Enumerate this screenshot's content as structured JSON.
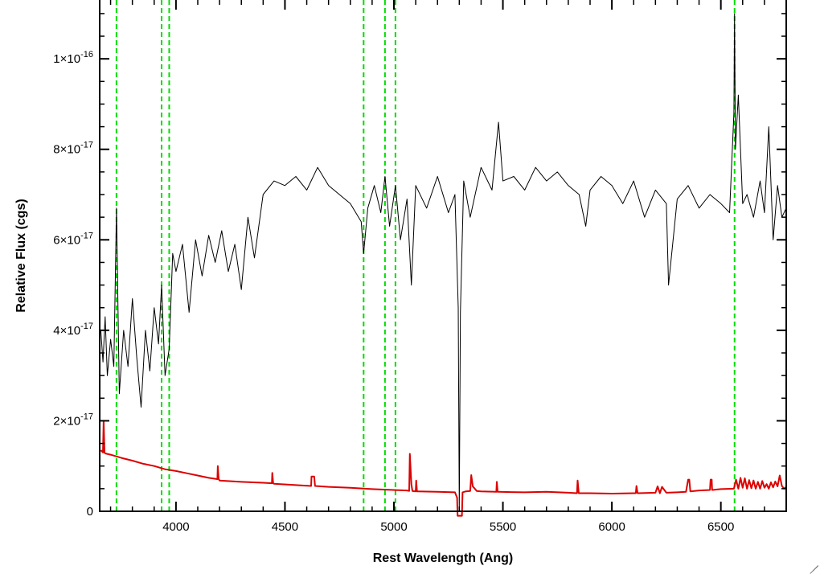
{
  "chart_data": {
    "type": "line",
    "title": "",
    "xlabel": "Rest Wavelength (Ang)",
    "ylabel": "Relative Flux (cgs)",
    "xlim": [
      3650,
      6800
    ],
    "ylim": [
      0,
      1.13e-16
    ],
    "x_ticks": [
      {
        "value": 4000,
        "label": "4000"
      },
      {
        "value": 4500,
        "label": "4500"
      },
      {
        "value": 5000,
        "label": "5000"
      },
      {
        "value": 5500,
        "label": "5500"
      },
      {
        "value": 6000,
        "label": "6000"
      },
      {
        "value": 6500,
        "label": "6500"
      }
    ],
    "y_ticks": [
      {
        "value": 0,
        "mant": "0",
        "exp": ""
      },
      {
        "value": 2e-17,
        "mant": "2×10",
        "exp": "-17"
      },
      {
        "value": 4e-17,
        "mant": "4×10",
        "exp": "-17"
      },
      {
        "value": 6e-17,
        "mant": "6×10",
        "exp": "-17"
      },
      {
        "value": 8e-17,
        "mant": "8×10",
        "exp": "-17"
      },
      {
        "value": 1e-16,
        "mant": "1×10",
        "exp": "-16"
      }
    ],
    "grid": false,
    "reference_lines": {
      "color": "#00dd00",
      "style": "dashed",
      "x": [
        3727,
        3934,
        3969,
        4861,
        4959,
        5007,
        6563
      ]
    },
    "series": [
      {
        "color": "#000000",
        "x": [
          3655,
          3665,
          3675,
          3685,
          3700,
          3715,
          3727,
          3740,
          3760,
          3780,
          3800,
          3820,
          3840,
          3860,
          3880,
          3900,
          3920,
          3934,
          3950,
          3969,
          3985,
          4000,
          4030,
          4060,
          4090,
          4120,
          4150,
          4180,
          4210,
          4240,
          4270,
          4300,
          4330,
          4360,
          4400,
          4450,
          4500,
          4550,
          4600,
          4650,
          4700,
          4750,
          4800,
          4850,
          4861,
          4880,
          4910,
          4940,
          4959,
          4980,
          5007,
          5030,
          5060,
          5080,
          5100,
          5150,
          5200,
          5250,
          5280,
          5295,
          5300,
          5305,
          5320,
          5350,
          5400,
          5450,
          5480,
          5500,
          5550,
          5600,
          5650,
          5700,
          5750,
          5800,
          5850,
          5880,
          5900,
          5950,
          6000,
          6050,
          6100,
          6150,
          6200,
          6250,
          6260,
          6300,
          6350,
          6400,
          6450,
          6500,
          6540,
          6560,
          6563,
          6567,
          6580,
          6600,
          6620,
          6650,
          6680,
          6700,
          6720,
          6740,
          6760,
          6780,
          6800
        ],
        "y": [
          4e-17,
          3.3e-17,
          4.3e-17,
          3e-17,
          3.8e-17,
          3.2e-17,
          6.7e-17,
          2.6e-17,
          4e-17,
          3.2e-17,
          4.7e-17,
          3.4e-17,
          2.3e-17,
          4e-17,
          3.1e-17,
          4.5e-17,
          3.7e-17,
          5e-17,
          3e-17,
          3.6e-17,
          5.7e-17,
          5.3e-17,
          5.9e-17,
          4.4e-17,
          6e-17,
          5.2e-17,
          6.1e-17,
          5.5e-17,
          6.2e-17,
          5.3e-17,
          5.9e-17,
          4.9e-17,
          6.5e-17,
          5.6e-17,
          7e-17,
          7.3e-17,
          7.2e-17,
          7.4e-17,
          7.1e-17,
          7.6e-17,
          7.2e-17,
          7e-17,
          6.8e-17,
          6.4e-17,
          5.7e-17,
          6.7e-17,
          7.2e-17,
          6.6e-17,
          7.4e-17,
          6.3e-17,
          7.2e-17,
          6e-17,
          6.9e-17,
          5e-17,
          7.2e-17,
          6.7e-17,
          7.4e-17,
          6.6e-17,
          7e-17,
          4.5e-17,
          0,
          4.4e-17,
          7.3e-17,
          6.5e-17,
          7.6e-17,
          7.1e-17,
          8.6e-17,
          7.3e-17,
          7.4e-17,
          7.1e-17,
          7.6e-17,
          7.3e-17,
          7.5e-17,
          7.2e-17,
          7e-17,
          6.3e-17,
          7.1e-17,
          7.4e-17,
          7.2e-17,
          6.8e-17,
          7.3e-17,
          6.5e-17,
          7.1e-17,
          6.8e-17,
          5e-17,
          6.9e-17,
          7.2e-17,
          6.7e-17,
          7e-17,
          6.8e-17,
          6.6e-17,
          8.8e-17,
          1.1e-16,
          8e-17,
          9.2e-17,
          6.8e-17,
          7e-17,
          6.5e-17,
          7.3e-17,
          6.6e-17,
          8.5e-17,
          6e-17,
          7.2e-17,
          6.5e-17,
          6.7e-17
        ]
      },
      {
        "color": "#dd0000",
        "x": [
          3655,
          3665,
          3668,
          3672,
          3675,
          3700,
          3750,
          3800,
          3850,
          3900,
          3950,
          4000,
          4050,
          4100,
          4150,
          4190,
          4192,
          4196,
          4200,
          4300,
          4400,
          4440,
          4442,
          4446,
          4450,
          4550,
          4620,
          4622,
          4634,
          4638,
          4700,
          4800,
          4900,
          5000,
          5060,
          5070,
          5073,
          5080,
          5085,
          5100,
          5102,
          5106,
          5110,
          5200,
          5280,
          5290,
          5292,
          5312,
          5315,
          5330,
          5350,
          5355,
          5362,
          5380,
          5400,
          5470,
          5472,
          5476,
          5480,
          5600,
          5700,
          5800,
          5840,
          5843,
          5848,
          5850,
          5900,
          6000,
          6100,
          6110,
          6113,
          6118,
          6120,
          6200,
          6210,
          6220,
          6230,
          6250,
          6300,
          6340,
          6350,
          6355,
          6360,
          6400,
          6450,
          6453,
          6458,
          6460,
          6500,
          6560,
          6563,
          6570,
          6580,
          6590,
          6600,
          6610,
          6620,
          6630,
          6640,
          6650,
          6660,
          6670,
          6680,
          6690,
          6700,
          6710,
          6720,
          6730,
          6740,
          6750,
          6760,
          6770,
          6780,
          6790,
          6800
        ],
        "y": [
          1.35e-17,
          1.3e-17,
          2e-17,
          1.3e-17,
          1.28e-17,
          1.25e-17,
          1.18e-17,
          1.12e-17,
          1.05e-17,
          1e-17,
          9.3e-18,
          8.9e-18,
          8.4e-18,
          7.9e-18,
          7.4e-18,
          7.1e-18,
          1e-17,
          7.1e-18,
          6.8e-18,
          6.5e-18,
          6.3e-18,
          6.2e-18,
          8.5e-18,
          6.2e-18,
          6.1e-18,
          5.8e-18,
          5.6e-18,
          7.7e-18,
          7.7e-18,
          5.6e-18,
          5.4e-18,
          5.2e-18,
          4.9e-18,
          4.7e-18,
          4.6e-18,
          4.5e-18,
          1.27e-17,
          6e-18,
          4.5e-18,
          4.4e-18,
          6.8e-18,
          4.4e-18,
          4.4e-18,
          4.3e-18,
          4.2e-18,
          3e-18,
          -1e-18,
          -1e-18,
          4.2e-18,
          4.4e-18,
          4.5e-18,
          8e-18,
          5.5e-18,
          4.5e-18,
          4.4e-18,
          4.3e-18,
          6.5e-18,
          4.3e-18,
          4.3e-18,
          4.2e-18,
          4.3e-18,
          4.1e-18,
          4e-18,
          6.8e-18,
          4e-18,
          4e-18,
          4e-18,
          3.9e-18,
          4e-18,
          4e-18,
          5.6e-18,
          4e-18,
          4e-18,
          4.1e-18,
          5.5e-18,
          4e-18,
          5.4e-18,
          4.1e-18,
          4.2e-18,
          4.3e-18,
          7e-18,
          7e-18,
          4.4e-18,
          4.6e-18,
          4.7e-18,
          7e-18,
          7e-18,
          4.7e-18,
          4.9e-18,
          5e-18,
          5.6e-18,
          7e-18,
          5e-18,
          7.4e-18,
          5.2e-18,
          7.3e-18,
          5e-18,
          6.9e-18,
          5.1e-18,
          6.8e-18,
          5e-18,
          6.5e-18,
          5e-18,
          6.7e-18,
          5.2e-18,
          6e-18,
          5e-18,
          6.4e-18,
          5.3e-18,
          6.6e-18,
          5.5e-18,
          7.9e-18,
          5.6e-18,
          5e-18,
          5.4e-18
        ]
      }
    ]
  }
}
